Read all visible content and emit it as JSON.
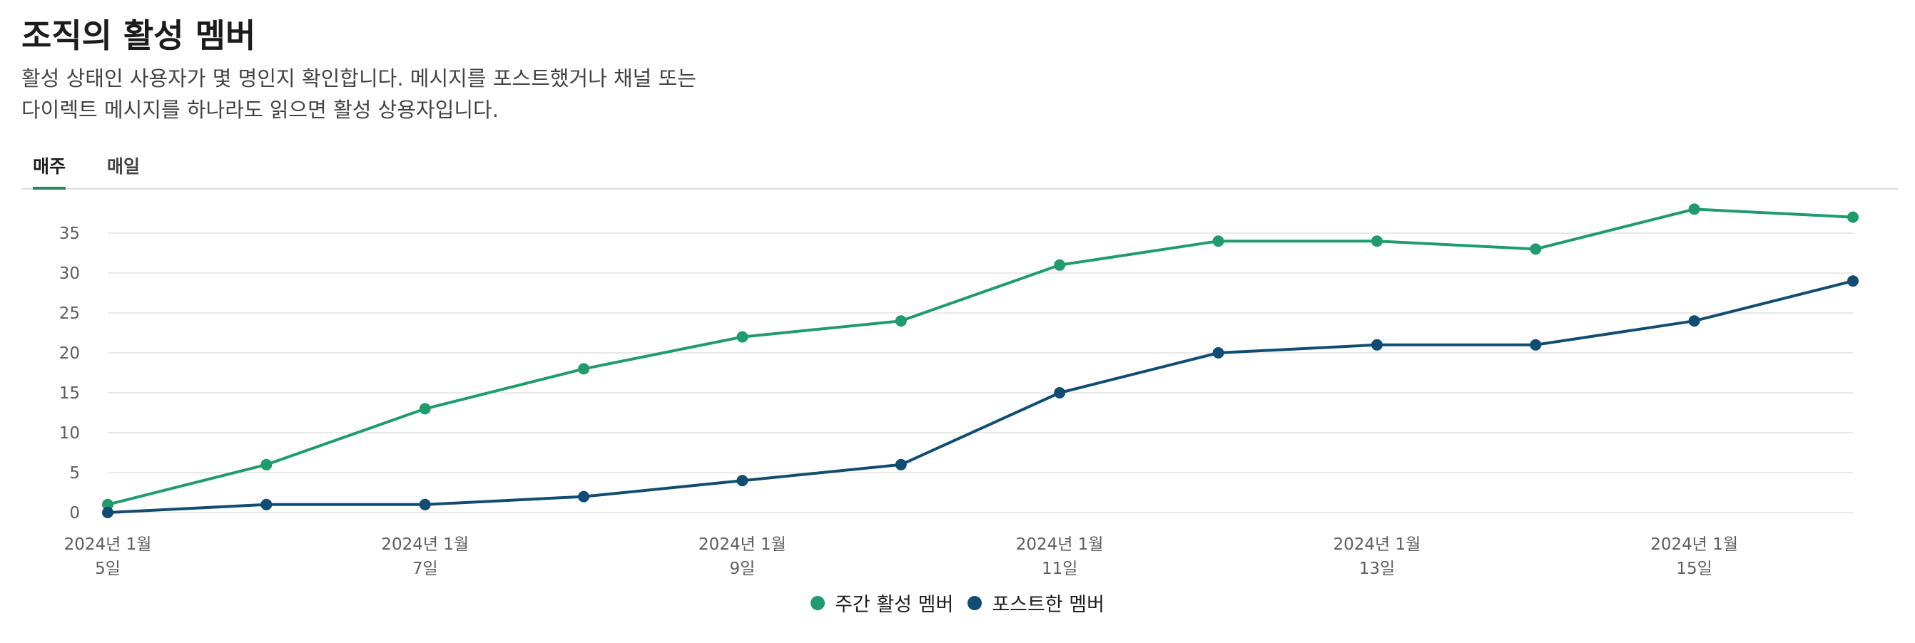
{
  "header": {
    "title": "조직의 활성 멤버",
    "description_line1": "활성 상태인 사용자가 몇 명인지 확인합니다. 메시지를 포스트했거나 채널 또는",
    "description_line2": "다이렉트 메시지를 하나라도 읽으면 활성 상용자입니다."
  },
  "tabs": [
    {
      "label": "매주",
      "active": true
    },
    {
      "label": "매일",
      "active": false
    }
  ],
  "chart_data": {
    "type": "line",
    "x": [
      "2024-01-05",
      "2024-01-06",
      "2024-01-07",
      "2024-01-08",
      "2024-01-09",
      "2024-01-10",
      "2024-01-11",
      "2024-01-12",
      "2024-01-13",
      "2024-01-14",
      "2024-01-15",
      "2024-01-16"
    ],
    "x_tick_labels": [
      {
        "index": 0,
        "line1": "2024년 1월",
        "line2": "5일"
      },
      {
        "index": 2,
        "line1": "2024년 1월",
        "line2": "7일"
      },
      {
        "index": 4,
        "line1": "2024년 1월",
        "line2": "9일"
      },
      {
        "index": 6,
        "line1": "2024년 1월",
        "line2": "11일"
      },
      {
        "index": 8,
        "line1": "2024년 1월",
        "line2": "13일"
      },
      {
        "index": 10,
        "line1": "2024년 1월",
        "line2": "15일"
      }
    ],
    "y_ticks": [
      0,
      5,
      10,
      15,
      20,
      25,
      30,
      35
    ],
    "ylim": [
      0,
      38
    ],
    "grid": true,
    "legend_position": "bottom-center",
    "series": [
      {
        "name": "주간 활성 멤버",
        "color": "#1f9b6e",
        "values": [
          1,
          6,
          13,
          18,
          22,
          24,
          31,
          34,
          34,
          33,
          38,
          37
        ]
      },
      {
        "name": "포스트한 멤버",
        "color": "#114d72",
        "values": [
          0,
          1,
          1,
          2,
          4,
          6,
          15,
          20,
          21,
          21,
          24,
          29
        ]
      }
    ]
  }
}
